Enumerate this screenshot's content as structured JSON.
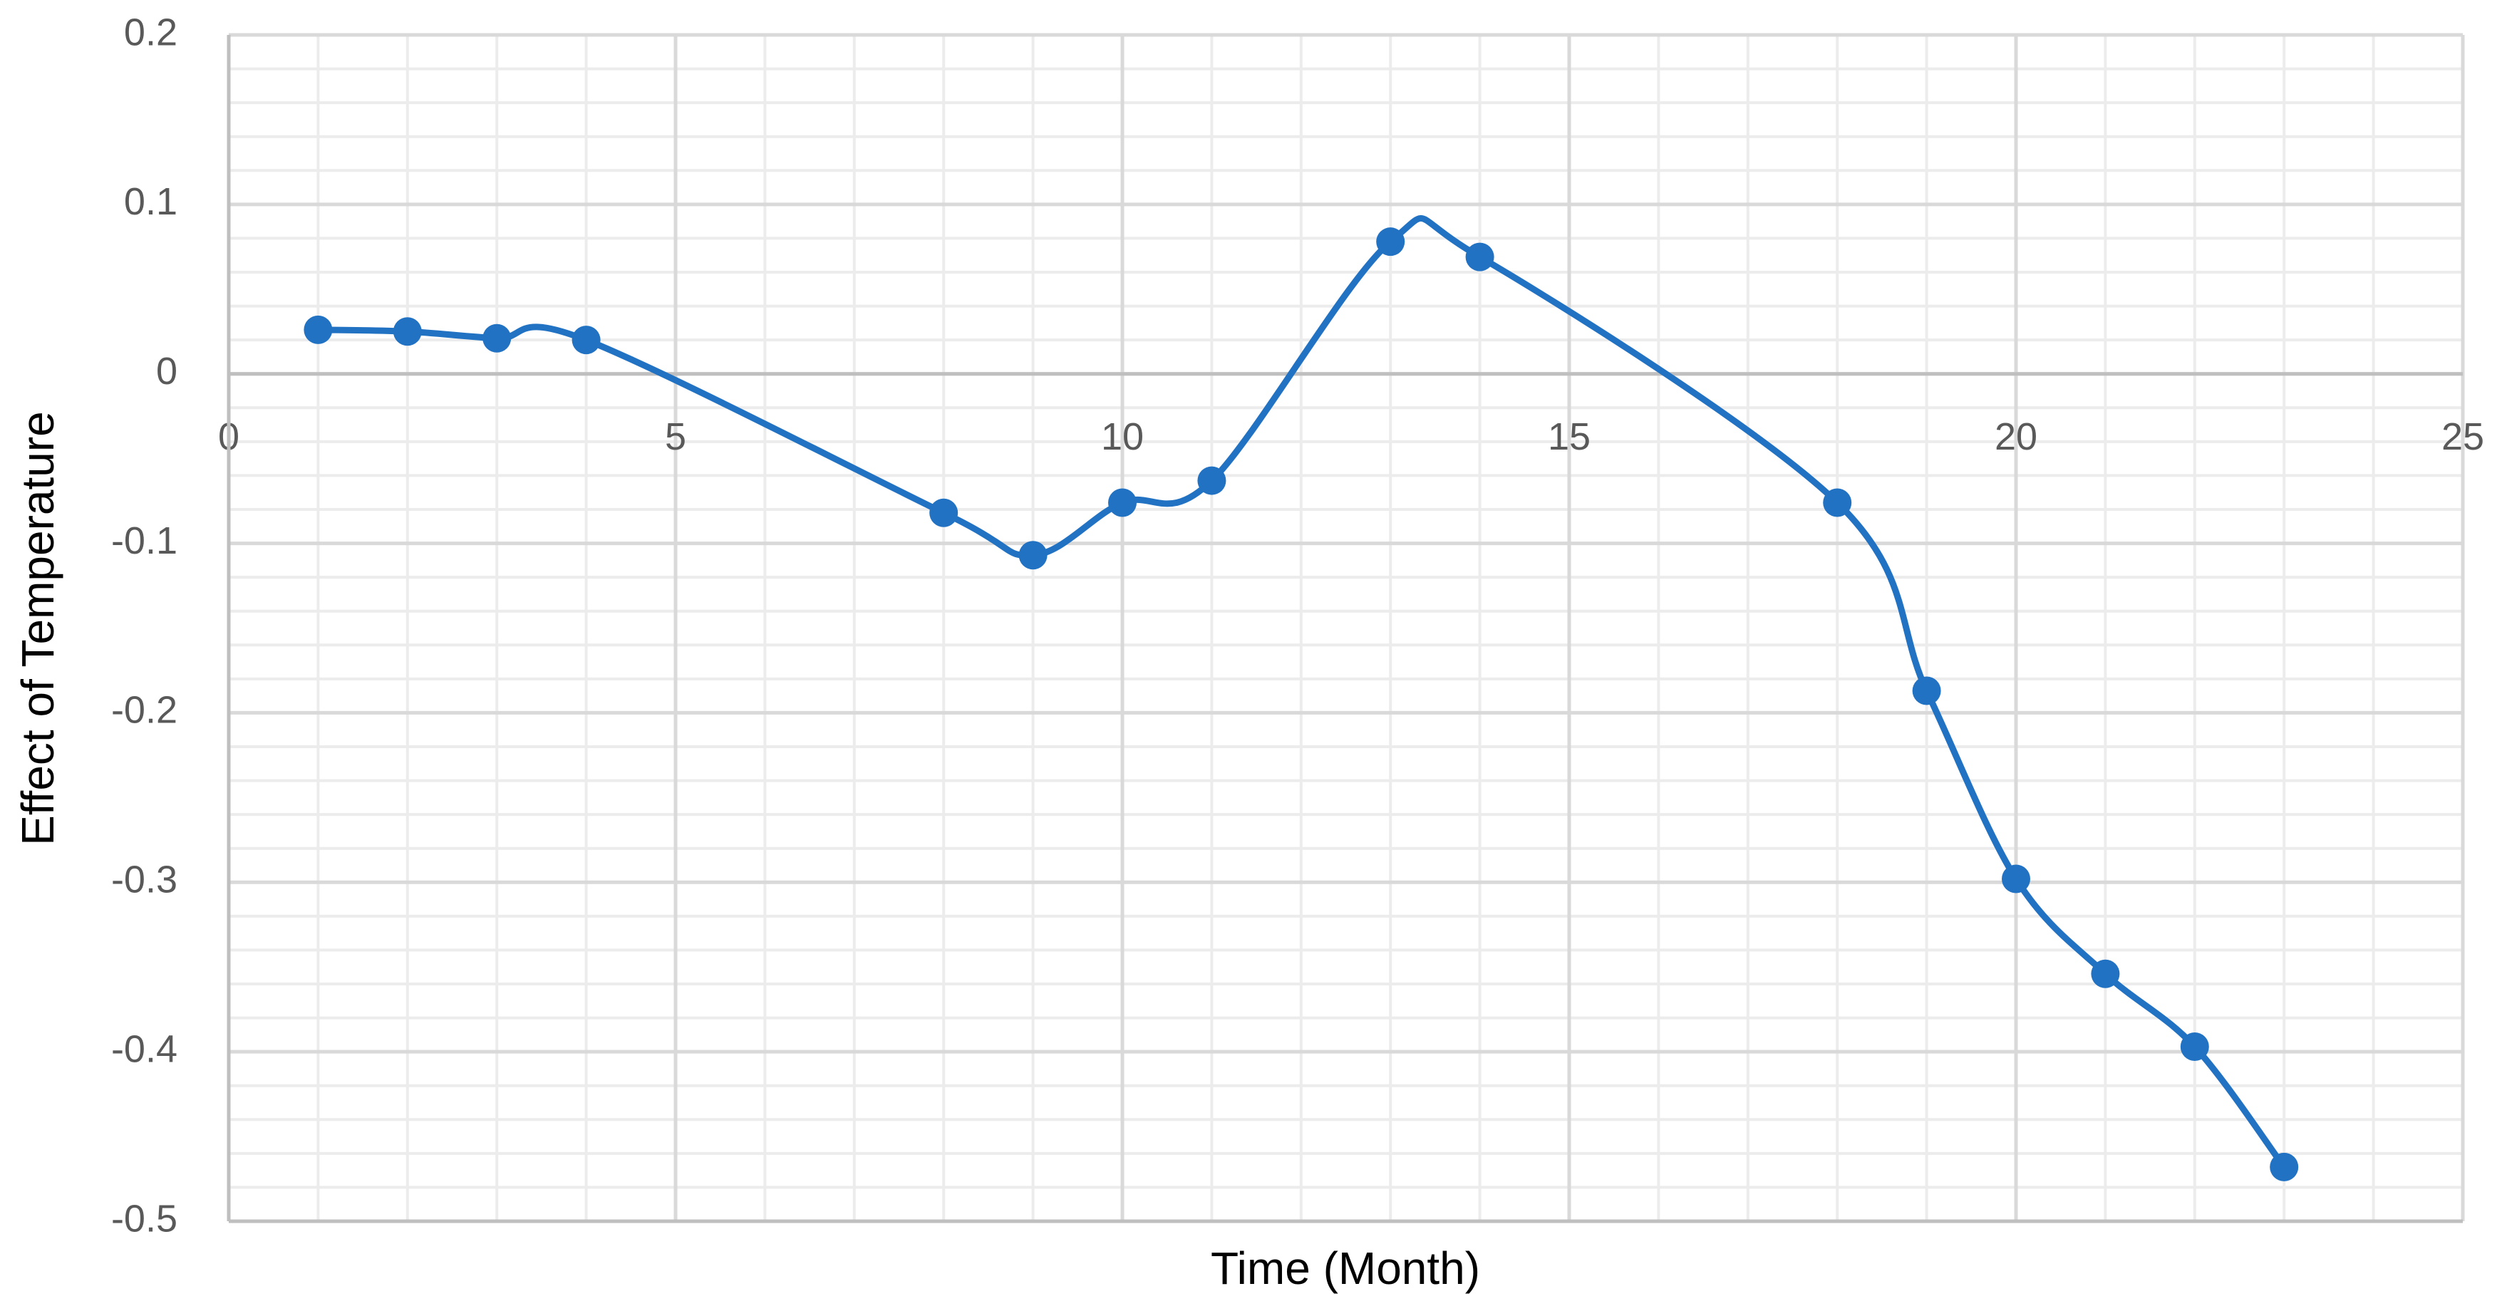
{
  "chart_data": {
    "type": "line",
    "xlabel": "Time (Month)",
    "ylabel": "Effect of Temperature",
    "x": [
      1,
      2,
      3,
      4,
      8,
      9,
      10,
      11,
      13,
      14,
      18,
      19,
      20,
      21,
      22,
      23
    ],
    "values": [
      0.026,
      0.025,
      0.021,
      0.02,
      -0.082,
      -0.107,
      -0.076,
      -0.063,
      0.078,
      0.069,
      -0.076,
      -0.187,
      -0.298,
      -0.354,
      -0.397,
      -0.468
    ],
    "color": "#2272c3",
    "xlim": [
      0,
      25
    ],
    "xticks": [
      0,
      5,
      10,
      15,
      20,
      25
    ],
    "ylim": [
      -0.5,
      0.2
    ],
    "yticks": [
      -0.5,
      -0.4,
      -0.3,
      -0.2,
      -0.1,
      0,
      0.1,
      0.2
    ],
    "grid": true,
    "minor_grid": true,
    "smooth": true,
    "markers": true
  }
}
